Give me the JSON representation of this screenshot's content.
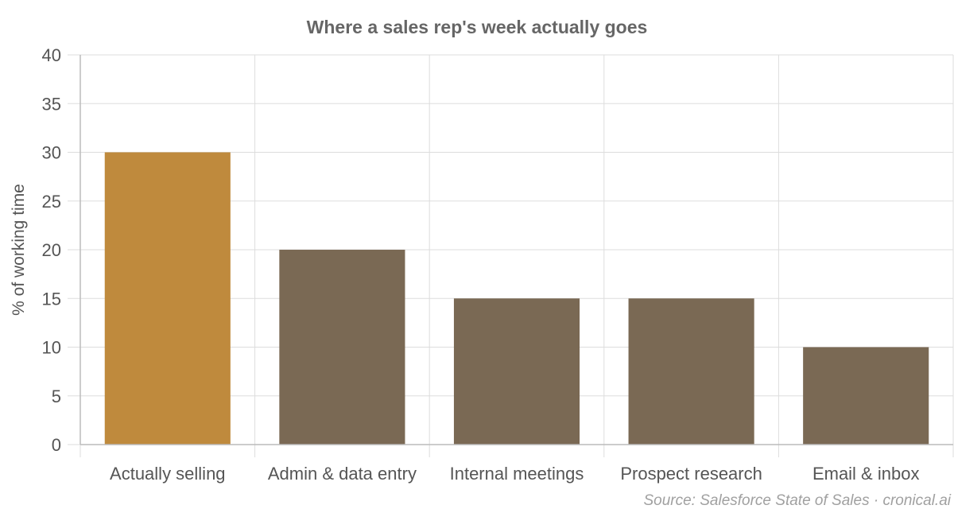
{
  "chart_data": {
    "type": "bar",
    "title": "Where a sales rep's week actually goes",
    "xlabel": "",
    "ylabel": "% of working time",
    "categories": [
      "Actually selling",
      "Admin & data entry",
      "Internal meetings",
      "Prospect research",
      "Email & inbox"
    ],
    "values": [
      30,
      20,
      15,
      15,
      10
    ],
    "ylim": [
      0,
      40
    ],
    "yticks": [
      0,
      5,
      10,
      15,
      20,
      25,
      30,
      35,
      40
    ],
    "grid": true,
    "legend": "none",
    "highlight_index": 0,
    "colors": {
      "highlight": "#BF8A3D",
      "bar": "#7A6954",
      "grid": "#DDDDDD",
      "axis": "#BBBBBB"
    },
    "source": "Source: Salesforce State of Sales · cronical.ai"
  }
}
